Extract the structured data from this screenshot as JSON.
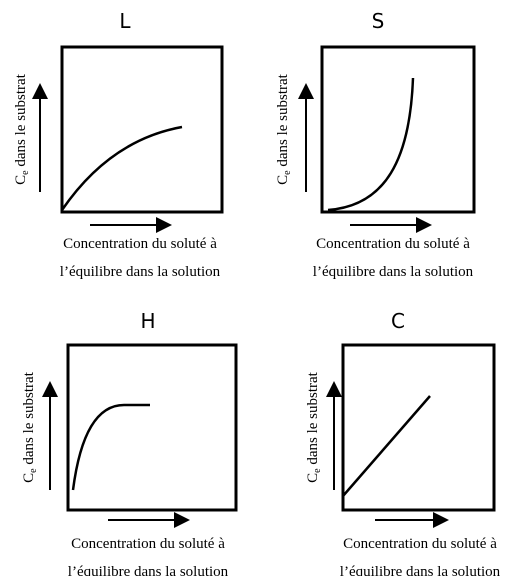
{
  "panels": [
    {
      "title": "L",
      "y_label": {
        "symbol": "C",
        "subscript": "e",
        "text": " dans le substrat"
      },
      "x_label": [
        "Concentration du soluté à",
        "l’équilibre dans la solution"
      ]
    },
    {
      "title": "S",
      "y_label": {
        "symbol": "C",
        "subscript": "e",
        "text": " dans le substrat"
      },
      "x_label": [
        "Concentration du soluté à",
        "l’équilibre dans la solution"
      ]
    },
    {
      "title": "H",
      "y_label": {
        "symbol": "C",
        "subscript": "e",
        "text": " dans le substrat"
      },
      "x_label": [
        "Concentration du soluté à",
        "l’équilibre dans la solution"
      ]
    },
    {
      "title": "C",
      "y_label": {
        "symbol": "C",
        "subscript": "e",
        "text": " dans le substrat"
      },
      "x_label": [
        "Concentration du soluté à",
        "l’équilibre dans la solution"
      ]
    }
  ]
}
